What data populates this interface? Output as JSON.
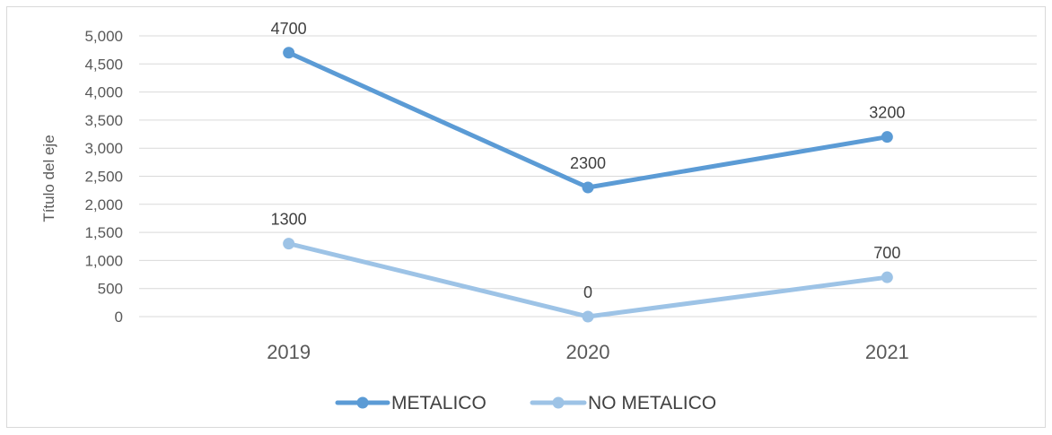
{
  "chart_data": {
    "type": "line",
    "title": "",
    "xlabel": "",
    "ylabel": "Título del eje",
    "categories": [
      "2019",
      "2020",
      "2021"
    ],
    "ylim": [
      0,
      5000
    ],
    "ytick_values": [
      0,
      500,
      1000,
      1500,
      2000,
      2500,
      3000,
      3500,
      4000,
      4500,
      5000
    ],
    "ytick_labels": [
      "0",
      "500",
      "1,000",
      "1,500",
      "2,000",
      "2,500",
      "3,000",
      "3,500",
      "4,000",
      "4,500",
      "5,000"
    ],
    "grid": "horizontal",
    "legend_position": "bottom",
    "series": [
      {
        "name": "METALICO",
        "values": [
          4700,
          2300,
          3200
        ],
        "labels": [
          "4700",
          "2300",
          "3200"
        ],
        "color": "#5b9bd5"
      },
      {
        "name": "NO METALICO",
        "values": [
          1300,
          0,
          700
        ],
        "labels": [
          "1300",
          "0",
          "700"
        ],
        "color": "#9dc3e6"
      }
    ]
  }
}
